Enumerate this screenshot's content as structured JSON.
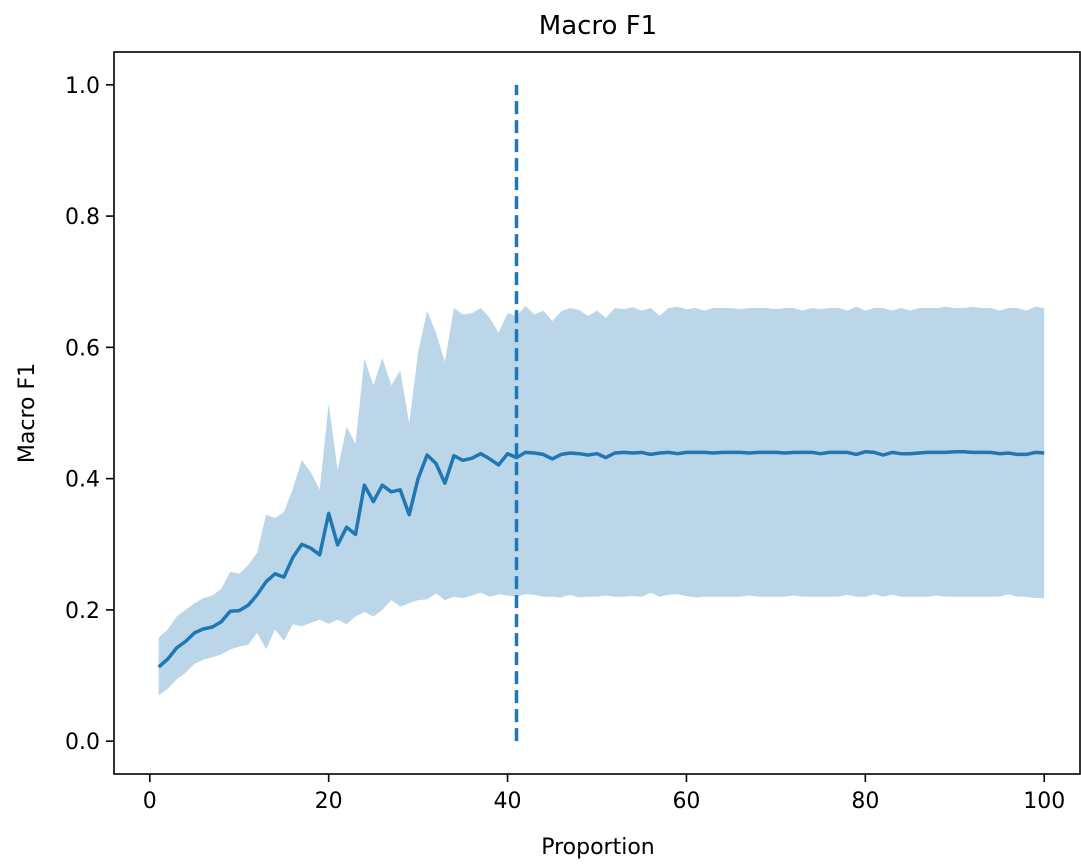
{
  "chart_data": {
    "type": "line",
    "title": "Macro F1",
    "xlabel": "Proportion",
    "ylabel": "Macro F1",
    "xlim": [
      -4,
      104
    ],
    "ylim": [
      -0.05,
      1.05
    ],
    "grid": false,
    "legend": "none",
    "x_ticks": [
      0,
      20,
      40,
      60,
      80,
      100
    ],
    "x_tick_labels": [
      "0",
      "20",
      "40",
      "60",
      "80",
      "100"
    ],
    "y_ticks": [
      0.0,
      0.2,
      0.4,
      0.6,
      0.8,
      1.0
    ],
    "y_tick_labels": [
      "0.0",
      "0.2",
      "0.4",
      "0.6",
      "0.8",
      "1.0"
    ],
    "series": [
      {
        "color": "#1f77b4",
        "x": [
          1,
          2,
          3,
          4,
          5,
          6,
          7,
          8,
          9,
          10,
          11,
          12,
          13,
          14,
          15,
          16,
          17,
          18,
          19,
          20,
          21,
          22,
          23,
          24,
          25,
          26,
          27,
          28,
          29,
          30,
          31,
          32,
          33,
          34,
          35,
          36,
          37,
          38,
          39,
          40,
          41,
          42,
          43,
          44,
          45,
          46,
          47,
          48,
          49,
          50,
          51,
          52,
          53,
          54,
          55,
          56,
          57,
          58,
          59,
          60,
          61,
          62,
          63,
          64,
          65,
          66,
          67,
          68,
          69,
          70,
          71,
          72,
          73,
          74,
          75,
          76,
          77,
          78,
          79,
          80,
          81,
          82,
          83,
          84,
          85,
          86,
          87,
          88,
          89,
          90,
          91,
          92,
          93,
          94,
          95,
          96,
          97,
          98,
          99,
          100
        ],
        "mean": [
          0.113,
          0.125,
          0.142,
          0.152,
          0.165,
          0.171,
          0.174,
          0.182,
          0.198,
          0.199,
          0.207,
          0.223,
          0.243,
          0.255,
          0.25,
          0.28,
          0.3,
          0.294,
          0.284,
          0.347,
          0.299,
          0.326,
          0.315,
          0.39,
          0.365,
          0.39,
          0.38,
          0.383,
          0.345,
          0.4,
          0.436,
          0.423,
          0.393,
          0.435,
          0.428,
          0.431,
          0.438,
          0.43,
          0.421,
          0.438,
          0.432,
          0.44,
          0.439,
          0.437,
          0.43,
          0.437,
          0.439,
          0.438,
          0.436,
          0.438,
          0.432,
          0.439,
          0.44,
          0.439,
          0.44,
          0.437,
          0.439,
          0.44,
          0.438,
          0.44,
          0.44,
          0.44,
          0.439,
          0.44,
          0.44,
          0.44,
          0.439,
          0.44,
          0.44,
          0.44,
          0.439,
          0.44,
          0.44,
          0.44,
          0.438,
          0.44,
          0.44,
          0.44,
          0.437,
          0.441,
          0.44,
          0.436,
          0.44,
          0.438,
          0.438,
          0.439,
          0.44,
          0.44,
          0.44,
          0.441,
          0.441,
          0.44,
          0.44,
          0.44,
          0.438,
          0.439,
          0.437,
          0.437,
          0.44,
          0.439
        ],
        "upper": [
          0.158,
          0.17,
          0.19,
          0.2,
          0.21,
          0.218,
          0.222,
          0.232,
          0.258,
          0.255,
          0.268,
          0.287,
          0.345,
          0.34,
          0.349,
          0.385,
          0.428,
          0.41,
          0.383,
          0.515,
          0.413,
          0.479,
          0.453,
          0.583,
          0.542,
          0.584,
          0.542,
          0.565,
          0.484,
          0.592,
          0.656,
          0.622,
          0.578,
          0.66,
          0.65,
          0.652,
          0.66,
          0.645,
          0.622,
          0.652,
          0.648,
          0.663,
          0.65,
          0.656,
          0.64,
          0.655,
          0.66,
          0.657,
          0.648,
          0.656,
          0.645,
          0.66,
          0.658,
          0.661,
          0.656,
          0.66,
          0.648,
          0.66,
          0.662,
          0.658,
          0.66,
          0.656,
          0.66,
          0.66,
          0.66,
          0.658,
          0.66,
          0.66,
          0.66,
          0.658,
          0.66,
          0.66,
          0.656,
          0.66,
          0.658,
          0.66,
          0.66,
          0.656,
          0.662,
          0.656,
          0.66,
          0.66,
          0.656,
          0.66,
          0.656,
          0.66,
          0.66,
          0.66,
          0.662,
          0.66,
          0.66,
          0.662,
          0.66,
          0.66,
          0.656,
          0.66,
          0.66,
          0.656,
          0.662,
          0.66
        ],
        "lower": [
          0.07,
          0.08,
          0.094,
          0.104,
          0.118,
          0.124,
          0.128,
          0.132,
          0.14,
          0.144,
          0.147,
          0.165,
          0.14,
          0.17,
          0.153,
          0.178,
          0.175,
          0.18,
          0.185,
          0.179,
          0.185,
          0.178,
          0.19,
          0.197,
          0.19,
          0.2,
          0.215,
          0.205,
          0.21,
          0.215,
          0.216,
          0.225,
          0.215,
          0.22,
          0.218,
          0.222,
          0.226,
          0.22,
          0.224,
          0.222,
          0.22,
          0.224,
          0.223,
          0.22,
          0.22,
          0.219,
          0.223,
          0.219,
          0.22,
          0.22,
          0.222,
          0.22,
          0.22,
          0.221,
          0.22,
          0.226,
          0.22,
          0.223,
          0.224,
          0.221,
          0.219,
          0.22,
          0.22,
          0.22,
          0.22,
          0.22,
          0.222,
          0.22,
          0.22,
          0.22,
          0.22,
          0.222,
          0.22,
          0.22,
          0.22,
          0.22,
          0.22,
          0.223,
          0.22,
          0.22,
          0.224,
          0.22,
          0.223,
          0.22,
          0.22,
          0.22,
          0.22,
          0.222,
          0.22,
          0.22,
          0.22,
          0.22,
          0.22,
          0.22,
          0.22,
          0.224,
          0.22,
          0.22,
          0.218,
          0.218
        ]
      }
    ],
    "vline": {
      "x": 41,
      "ymin": 0.0,
      "ymax": 1.0,
      "style": "dashed",
      "color": "#1f77b4"
    },
    "band_color": "#1f77b4",
    "band_opacity": 0.3
  }
}
